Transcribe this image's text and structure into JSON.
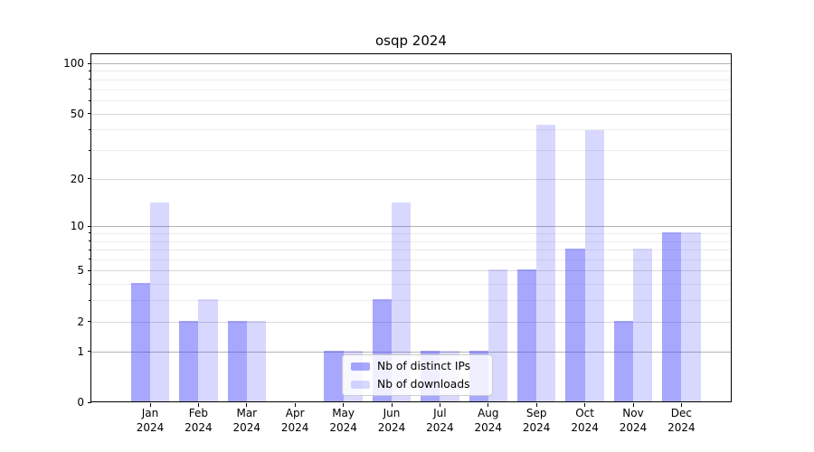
{
  "title": "osqp 2024",
  "legend": {
    "position": "lower center",
    "items": [
      {
        "id": "distinct-ips",
        "label": "Nb of distinct IPs",
        "color": "rgba(60,60,250,0.45)"
      },
      {
        "id": "downloads",
        "label": "Nb of downloads",
        "color": "rgba(60,60,250,0.2)"
      }
    ]
  },
  "colors": {
    "bar_distinct_ips": "rgba(60,60,250,0.45)",
    "bar_downloads": "rgba(60,60,250,0.2)",
    "major_gridline": "#b3b3b3",
    "labeled_minor_gridline": "#d9d9d9",
    "faint_minor_gridline": "#ececec",
    "axis": "#000000"
  },
  "chart_data": {
    "type": "bar",
    "title": "osqp 2024",
    "categories": [
      "Jan 2024",
      "Feb 2024",
      "Mar 2024",
      "Apr 2024",
      "May 2024",
      "Jun 2024",
      "Jul 2024",
      "Aug 2024",
      "Sep 2024",
      "Oct 2024",
      "Nov 2024",
      "Dec 2024"
    ],
    "x_tick_labels": [
      [
        "Jan",
        "2024"
      ],
      [
        "Feb",
        "2024"
      ],
      [
        "Mar",
        "2024"
      ],
      [
        "Apr",
        "2024"
      ],
      [
        "May",
        "2024"
      ],
      [
        "Jun",
        "2024"
      ],
      [
        "Jul",
        "2024"
      ],
      [
        "Aug",
        "2024"
      ],
      [
        "Sep",
        "2024"
      ],
      [
        "Oct",
        "2024"
      ],
      [
        "Nov",
        "2024"
      ],
      [
        "Dec",
        "2024"
      ]
    ],
    "series": [
      {
        "name": "Nb of distinct IPs",
        "color": "rgba(60,60,250,0.45)",
        "values": [
          4,
          2,
          2,
          0,
          1,
          3,
          1,
          1,
          5,
          7,
          2,
          9
        ]
      },
      {
        "name": "Nb of downloads",
        "color": "rgba(60,60,250,0.2)",
        "values": [
          14,
          3,
          2,
          0,
          1,
          14,
          1,
          5,
          42,
          39,
          7,
          9
        ]
      }
    ],
    "xlabel": "",
    "ylabel": "",
    "yscale": "log1p",
    "ylim": [
      0,
      114
    ],
    "yticks": [
      0,
      1,
      2,
      5,
      10,
      20,
      50,
      100
    ],
    "ytick_labels": [
      "0",
      "1",
      "2",
      "5",
      "10",
      "20",
      "50",
      "100"
    ],
    "major_gridlines": [
      1,
      10,
      100
    ],
    "labeled_minor_gridlines": [
      2,
      5,
      20,
      50
    ],
    "faint_minor_gridlines": [
      3,
      4,
      6,
      7,
      8,
      9,
      30,
      40,
      60,
      70,
      80,
      90
    ],
    "grid": true,
    "legend_position": "lower center"
  }
}
